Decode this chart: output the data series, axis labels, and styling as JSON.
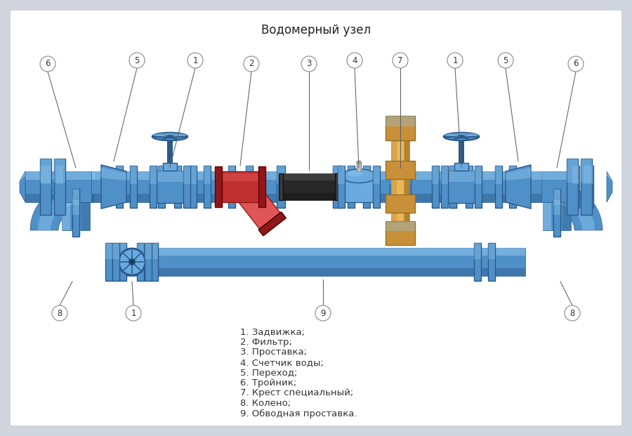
{
  "title": "Водомерный узел",
  "bg": "#d0d5de",
  "card_bg": "#f0f2f5",
  "pipe_blue": "#5090c8",
  "pipe_dark": "#2a5a8a",
  "pipe_light": "#90c8f0",
  "pipe_mid": "#6aaae0",
  "red1": "#c03030",
  "red2": "#e05555",
  "red3": "#901818",
  "black1": "#282828",
  "black2": "#505050",
  "brass1": "#c89038",
  "brass2": "#e8b858",
  "brass3": "#987020",
  "legend": [
    "1. Задвижка;",
    "2. Фильтр;",
    "3. Проставка;",
    "4. Счетчик воды;",
    "5. Переход;",
    "6. Тройник;",
    "7. Крест специальный;",
    "8. Колено;",
    "9. Обводная проставка."
  ]
}
